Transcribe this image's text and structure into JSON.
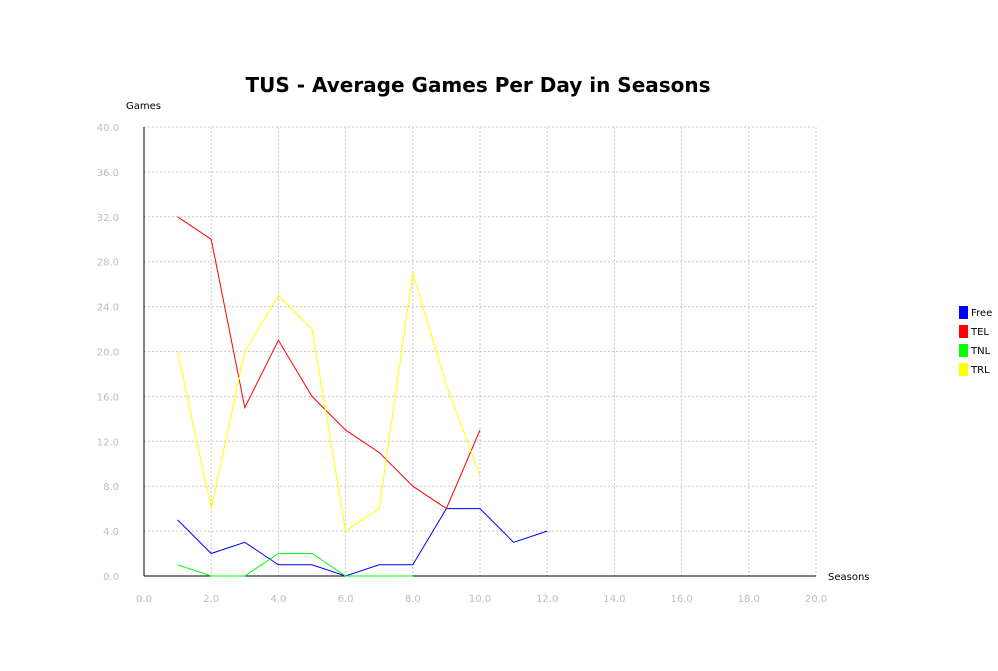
{
  "chart_data": {
    "type": "line",
    "title": "TUS - Average Games Per Day in Seasons",
    "xlabel": "Seasons",
    "ylabel": "Games",
    "xlim": [
      0,
      20
    ],
    "ylim": [
      0,
      40
    ],
    "x_ticks": [
      "0.0",
      "2.0",
      "4.0",
      "6.0",
      "8.0",
      "10.0",
      "12.0",
      "14.0",
      "16.0",
      "18.0",
      "20.0"
    ],
    "y_ticks": [
      "0.0",
      "4.0",
      "8.0",
      "12.0",
      "16.0",
      "20.0",
      "24.0",
      "28.0",
      "32.0",
      "36.0",
      "40.0"
    ],
    "grid": true,
    "legend_position": "right",
    "series": [
      {
        "name": "Free",
        "color": "#0000ff",
        "points": [
          [
            1,
            5
          ],
          [
            2,
            2
          ],
          [
            3,
            3
          ],
          [
            4,
            1
          ],
          [
            5,
            1
          ],
          [
            6,
            0
          ],
          [
            7,
            1
          ],
          [
            8,
            1
          ],
          [
            9,
            6
          ],
          [
            10,
            6
          ],
          [
            11,
            3
          ],
          [
            12,
            4
          ]
        ]
      },
      {
        "name": "TEL",
        "color": "#ff0000",
        "points": [
          [
            1,
            32
          ],
          [
            2,
            30
          ],
          [
            3,
            15
          ],
          [
            4,
            21
          ],
          [
            5,
            16
          ],
          [
            6,
            13
          ],
          [
            7,
            11
          ],
          [
            8,
            8
          ],
          [
            9,
            6
          ],
          [
            10,
            13
          ]
        ]
      },
      {
        "name": "TNL",
        "color": "#00ff00",
        "points": [
          [
            1,
            1
          ],
          [
            2,
            0
          ],
          [
            3,
            0
          ],
          [
            4,
            2
          ],
          [
            5,
            2
          ],
          [
            6,
            0
          ],
          [
            7,
            0
          ],
          [
            8,
            0
          ]
        ]
      },
      {
        "name": "TRL",
        "color": "#ffff00",
        "points": [
          [
            1,
            20
          ],
          [
            2,
            6
          ],
          [
            3,
            20
          ],
          [
            4,
            25
          ],
          [
            5,
            22
          ],
          [
            6,
            4
          ],
          [
            7,
            6
          ],
          [
            8,
            27
          ],
          [
            9,
            17
          ],
          [
            10,
            9
          ]
        ]
      }
    ]
  }
}
